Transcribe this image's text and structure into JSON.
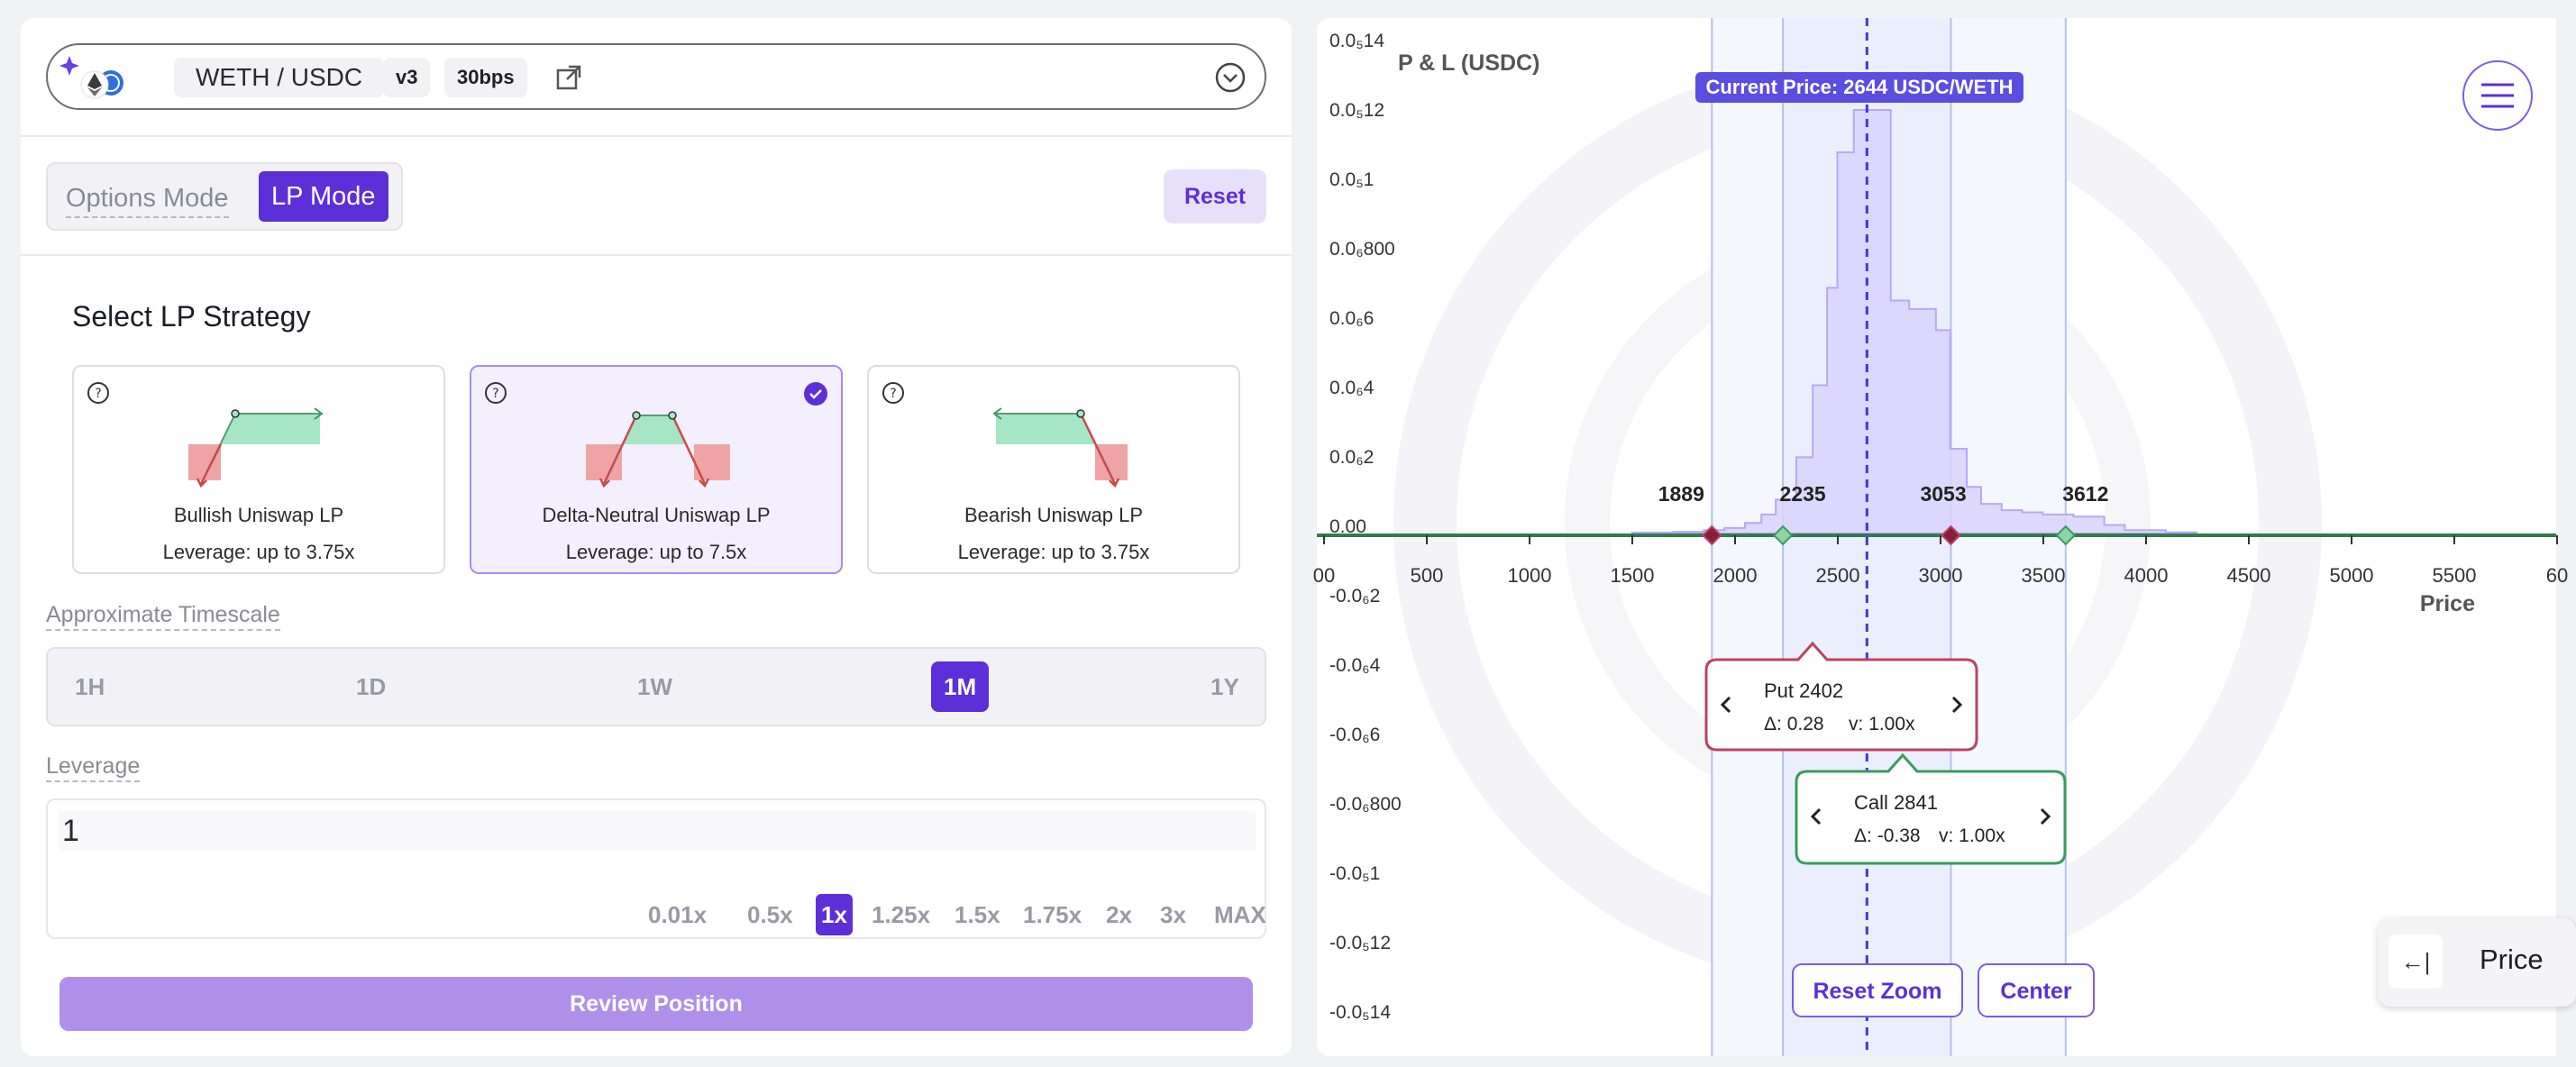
{
  "pair": {
    "name": "WETH / USDC",
    "version": "v3",
    "fee": "30bps"
  },
  "mode": {
    "options_label": "Options Mode",
    "lp_label": "LP Mode",
    "reset_label": "Reset"
  },
  "strategy": {
    "title": "Select LP Strategy",
    "cards": [
      {
        "name": "Bullish Uniswap LP",
        "leverage": "Leverage: up to 3.75x",
        "selected": false
      },
      {
        "name": "Delta-Neutral Uniswap LP",
        "leverage": "Leverage: up to 7.5x",
        "selected": true
      },
      {
        "name": "Bearish Uniswap LP",
        "leverage": "Leverage: up to 3.75x",
        "selected": false
      }
    ]
  },
  "timescale": {
    "label": "Approximate Timescale",
    "options": [
      "1H",
      "1D",
      "1W",
      "1M",
      "1Y"
    ],
    "active": "1M"
  },
  "leverage": {
    "label": "Leverage",
    "value": "1",
    "options": [
      "0.01x",
      "0.5x",
      "1x",
      "1.25x",
      "1.5x",
      "1.75x",
      "2x",
      "3x",
      "MAX"
    ],
    "active": "1x"
  },
  "review_label": "Review Position",
  "chart_data": {
    "type": "line",
    "ylabel": "P & L (USDC)",
    "xlabel": "Price",
    "current_price_label": "Current Price: 2644 USDC/WETH",
    "current_price": 2644,
    "x_ticks": [
      "00",
      "500",
      "1000",
      "1500",
      "2000",
      "2500",
      "3000",
      "3500",
      "4000",
      "4500",
      "5000",
      "5500",
      "60"
    ],
    "y_ticks": [
      "0.0₅14",
      "0.0₅12",
      "0.0₅1",
      "0.0₆800",
      "0.0₆6",
      "0.0₆4",
      "0.0₆2",
      "0.00",
      "-0.0₆2",
      "-0.0₆4",
      "-0.0₆6",
      "-0.0₆800",
      "-0.0₅1",
      "-0.0₅12",
      "-0.0₅14"
    ],
    "strike_labels": [
      {
        "label": "1889",
        "price": 1889
      },
      {
        "label": "2235",
        "price": 2235
      },
      {
        "label": "3053",
        "price": 3053
      },
      {
        "label": "3612",
        "price": 3612
      }
    ],
    "density_profile": [
      [
        1500,
        0.002
      ],
      [
        1700,
        0.004
      ],
      [
        1850,
        0.008
      ],
      [
        1950,
        0.013
      ],
      [
        2050,
        0.025
      ],
      [
        2130,
        0.045
      ],
      [
        2200,
        0.08
      ],
      [
        2300,
        0.18
      ],
      [
        2380,
        0.35
      ],
      [
        2450,
        0.58
      ],
      [
        2500,
        0.9
      ],
      [
        2580,
        1.0
      ],
      [
        2640,
        1.0
      ],
      [
        2700,
        1.0
      ],
      [
        2760,
        0.55
      ],
      [
        2850,
        0.53
      ],
      [
        2980,
        0.48
      ],
      [
        3050,
        0.2
      ],
      [
        3130,
        0.11
      ],
      [
        3200,
        0.07
      ],
      [
        3300,
        0.055
      ],
      [
        3400,
        0.05
      ],
      [
        3500,
        0.045
      ],
      [
        3650,
        0.04
      ],
      [
        3800,
        0.02
      ],
      [
        3900,
        0.008
      ],
      [
        4100,
        0.003
      ]
    ],
    "tooltips": [
      {
        "title": "Put 2402",
        "delta": "Δ: 0.28",
        "vol": "v: 1.00x"
      },
      {
        "title": "Call 2841",
        "delta": "Δ: -0.38",
        "vol": "v: 1.00x"
      }
    ],
    "buttons": {
      "reset_zoom": "Reset Zoom",
      "center": "Center"
    }
  },
  "price_tab": {
    "icon": "←|",
    "label": "Price"
  },
  "colors": {
    "accent": "#5d2fd8",
    "put": "#b94462",
    "call": "#3a9a60",
    "zero_line": "#2e7d4a"
  }
}
